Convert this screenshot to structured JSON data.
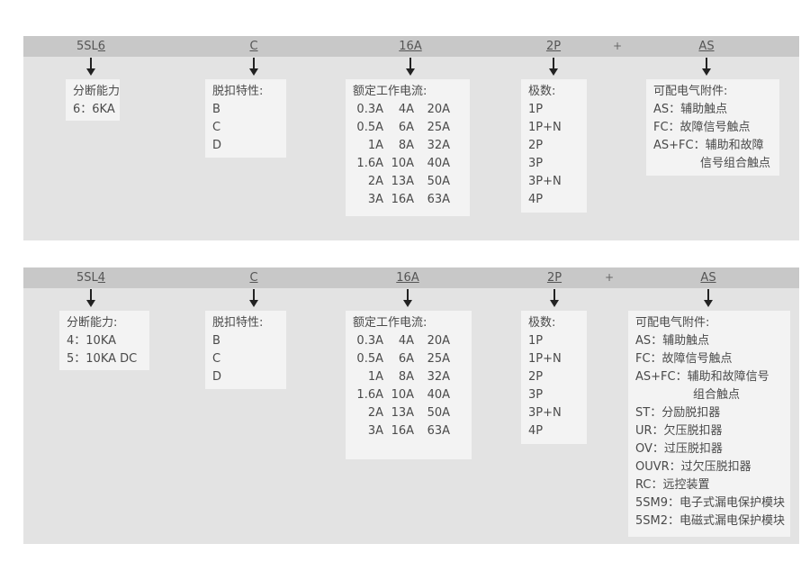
{
  "panels": [
    {
      "model": {
        "prefix": "5SL",
        "suffix": "6"
      },
      "curve": "C",
      "current": "16A",
      "poles": "2P",
      "plus": "+",
      "accessory": "AS",
      "breaking": {
        "lines": [
          "分断能力",
          "6：6KA"
        ]
      },
      "trip": {
        "lines": [
          "脱扣特性:",
          "B",
          "C",
          "D"
        ]
      },
      "rated": {
        "title": "额定工作电流:",
        "rows": [
          [
            "0.3A",
            "4A",
            "20A"
          ],
          [
            "0.5A",
            "6A",
            "25A"
          ],
          [
            "1A",
            "8A",
            "32A"
          ],
          [
            "1.6A",
            "10A",
            "40A"
          ],
          [
            "2A",
            "13A",
            "50A"
          ],
          [
            "3A",
            "16A",
            "63A"
          ]
        ]
      },
      "pole_list": {
        "lines": [
          "极数:",
          "1P",
          "1P+N",
          "2P",
          "3P",
          "3P+N",
          "4P"
        ]
      },
      "acc_list": {
        "lines": [
          "可配电气附件:",
          "AS：辅助触点",
          "FC：故障信号触点",
          "AS+FC：辅助和故障",
          "信号组合触点"
        ]
      }
    },
    {
      "model": {
        "prefix": "5SL",
        "suffix": "4"
      },
      "curve": "C",
      "current": "16A",
      "poles": "2P",
      "plus": "+",
      "accessory": "AS",
      "breaking": {
        "lines": [
          "分断能力:",
          "4：10KA",
          "5：10KA DC"
        ]
      },
      "trip": {
        "lines": [
          "脱扣特性:",
          "B",
          "C",
          "D"
        ]
      },
      "rated": {
        "title": "额定工作电流:",
        "rows": [
          [
            "0.3A",
            "4A",
            "20A"
          ],
          [
            "0.5A",
            "6A",
            "25A"
          ],
          [
            "1A",
            "8A",
            "32A"
          ],
          [
            "1.6A",
            "10A",
            "40A"
          ],
          [
            "2A",
            "13A",
            "50A"
          ],
          [
            "3A",
            "16A",
            "63A"
          ]
        ]
      },
      "pole_list": {
        "lines": [
          "极数:",
          "1P",
          "1P+N",
          "2P",
          "3P",
          "3P+N",
          "4P"
        ]
      },
      "acc_list": {
        "lines": [
          "可配电气附件:",
          "AS：辅助触点",
          "FC：故障信号触点",
          "AS+FC：辅助和故障信号",
          "组合触点",
          "ST：分励脱扣器",
          "UR：欠压脱扣器",
          "OV：过压脱扣器",
          "OUVR：过欠压脱扣器",
          "RC：远控装置",
          "5SM9：电子式漏电保护模块",
          "5SM2：电磁式漏电保护模块"
        ]
      }
    }
  ]
}
